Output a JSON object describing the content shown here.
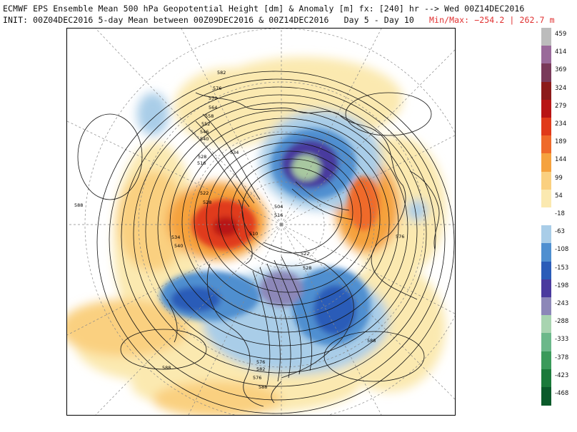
{
  "header": {
    "line1": "ECMWF EPS Ensemble Mean 500 hPa Geopotential Height [dm] & Anomaly [m] fx: [240] hr --> Wed 00Z14DEC2016",
    "line2_main": "INIT: 00Z04DEC2016 5-day Mean between 00Z09DEC2016 & 00Z14DEC2016   Day 5 - Day 10",
    "line2_minmax": "Min/Max: −254.2 | 262.7 m"
  },
  "colorbar": {
    "labels": [
      "459",
      "414",
      "369",
      "324",
      "279",
      "234",
      "189",
      "144",
      "99",
      "54",
      "-18",
      "-63",
      "-108",
      "-153",
      "-198",
      "-243",
      "-288",
      "-333",
      "-378",
      "-423",
      "-468"
    ],
    "colors": [
      "#bcbcbc",
      "#9a6a9a",
      "#7a3a5a",
      "#8c1a1a",
      "#b81414",
      "#e03a1a",
      "#ef6a2a",
      "#f5a23e",
      "#fad080",
      "#fbe9b0",
      "#ffffff",
      "#a9cde8",
      "#4f8fd0",
      "#2a5cb8",
      "#4a3a9e",
      "#8c87b8",
      "#a8d4b0",
      "#6cb88a",
      "#3a9a5a",
      "#1a7a3a",
      "#0a5a2a"
    ]
  },
  "map": {
    "contour_labels": [
      "582",
      "576",
      "570",
      "564",
      "558",
      "552",
      "546",
      "540",
      "534",
      "528",
      "516",
      "588",
      "522",
      "528",
      "534",
      "540",
      "504",
      "516",
      "510",
      "522",
      "576",
      "528",
      "588",
      "588",
      "576",
      "582",
      "576",
      "588"
    ]
  }
}
